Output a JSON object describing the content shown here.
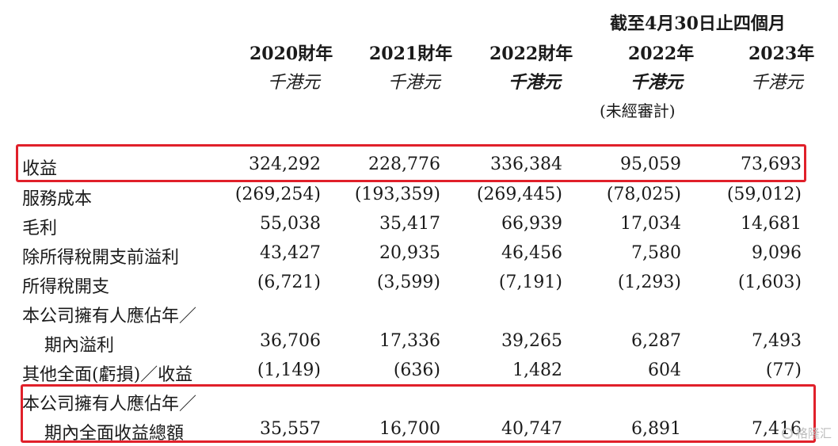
{
  "header": {
    "period_title": "截至4月30日止四個月",
    "columns": [
      {
        "year": "2020財年",
        "unit": "千港元",
        "note": ""
      },
      {
        "year": "2021財年",
        "unit": "千港元",
        "note": ""
      },
      {
        "year": "2022財年",
        "unit": "千港元",
        "note": ""
      },
      {
        "year": "2022年",
        "unit": "千港元",
        "note": "(未經審計)"
      },
      {
        "year": "2023年",
        "unit": "千港元",
        "note": ""
      }
    ]
  },
  "rows": [
    {
      "label": "收益",
      "values": [
        "324,292",
        "228,776",
        "336,384",
        "95,059",
        "73,693"
      ],
      "highlight": true
    },
    {
      "label": "服務成本",
      "values": [
        "(269,254)",
        "(193,359)",
        "(269,445)",
        "(78,025)",
        "(59,012)"
      ]
    },
    {
      "label": "毛利",
      "values": [
        "55,038",
        "35,417",
        "66,939",
        "17,034",
        "14,681"
      ]
    },
    {
      "label": "除所得稅開支前溢利",
      "values": [
        "43,427",
        "20,935",
        "46,456",
        "7,580",
        "9,096"
      ]
    },
    {
      "label": "所得稅開支",
      "values": [
        "(6,721)",
        "(3,599)",
        "(7,191)",
        "(1,293)",
        "(1,603)"
      ]
    },
    {
      "label": "本公司擁有人應佔年／",
      "label2": "期內溢利",
      "values": [
        "36,706",
        "17,336",
        "39,265",
        "6,287",
        "7,493"
      ]
    },
    {
      "label": "其他全面(虧損)／收益",
      "values": [
        "(1,149)",
        "(636)",
        "1,482",
        "604",
        "(77)"
      ]
    },
    {
      "label": "本公司擁有人應佔年／",
      "label2": "期內全面收益總額",
      "values": [
        "35,557",
        "16,700",
        "40,747",
        "6,891",
        "7,416"
      ],
      "highlight": true
    }
  ],
  "watermark": {
    "text": "格隆汇",
    "icon": "logo-circle-icon"
  },
  "colors": {
    "highlight_border": "#e0202a",
    "text": "#1a1a1a"
  }
}
